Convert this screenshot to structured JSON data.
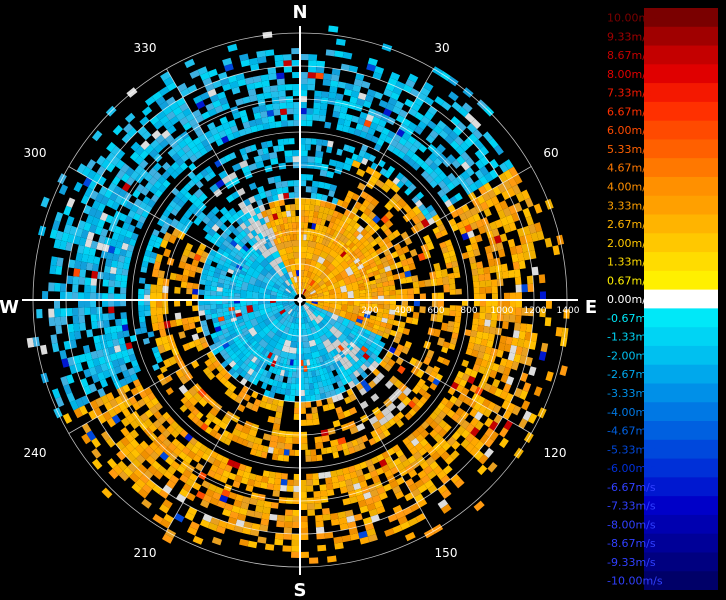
{
  "cardinals": {
    "north": "N",
    "east": "E",
    "south": "S",
    "west": "W"
  },
  "azimuth_labels": [
    "30",
    "60",
    "120",
    "150",
    "210",
    "240",
    "300",
    "330"
  ],
  "range_labels": [
    "200",
    "400",
    "600",
    "800",
    "1000",
    "1200",
    "1400"
  ],
  "legend": {
    "labels": [
      "10.00m/s",
      "9.33m/s",
      "8.67m/s",
      "8.00m/s",
      "7.33m/s",
      "6.67m/s",
      "6.00m/s",
      "5.33m/s",
      "4.67m/s",
      "4.00m/s",
      "3.33m/s",
      "2.67m/s",
      "2.00m/s",
      "1.33m/s",
      "0.67m/s",
      "0.00m/s",
      "-0.67m/s",
      "-1.33m/s",
      "-2.00m/s",
      "-2.67m/s",
      "-3.33m/s",
      "-4.00m/s",
      "-4.67m/s",
      "-5.33m/s",
      "-6.00m/s",
      "-6.67m/s",
      "-7.33m/s",
      "-8.00m/s",
      "-8.67m/s",
      "-9.33m/s",
      "-10.00m/s"
    ],
    "colors": [
      "#7a0000",
      "#a00000",
      "#c40000",
      "#e00000",
      "#f41800",
      "#ff3000",
      "#ff4a00",
      "#ff6000",
      "#ff7800",
      "#ff9000",
      "#ffa000",
      "#ffb400",
      "#ffc800",
      "#ffdc00",
      "#fff000",
      "#ffffff",
      "#00e8f8",
      "#00d4f4",
      "#00c0f0",
      "#00a8ec",
      "#0090e8",
      "#0078e4",
      "#0060e0",
      "#0048dc",
      "#0030d8",
      "#0018d0",
      "#0000c8",
      "#0000b0",
      "#000098",
      "#000080",
      "#000068"
    ]
  }
}
